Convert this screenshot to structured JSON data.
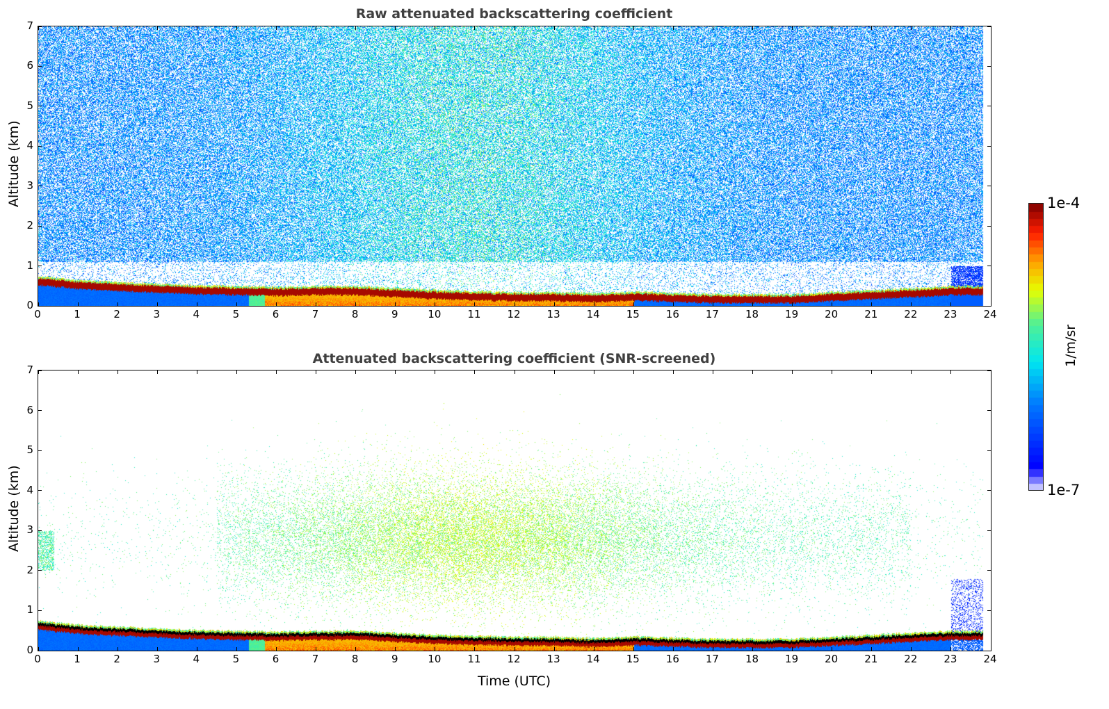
{
  "chart_data": [
    {
      "type": "heatmap",
      "title": "Raw attenuated backscattering coefficient",
      "xlabel": "",
      "ylabel": "Altitude (km)",
      "xlim": [
        0,
        24
      ],
      "ylim": [
        0,
        7
      ],
      "xticks": [
        0,
        1,
        2,
        3,
        4,
        5,
        6,
        7,
        8,
        9,
        10,
        11,
        12,
        13,
        14,
        15,
        16,
        17,
        18,
        19,
        20,
        21,
        22,
        23,
        24
      ],
      "yticks": [
        0,
        1,
        2,
        3,
        4,
        5,
        6,
        7
      ],
      "screened": false
    },
    {
      "type": "heatmap",
      "title": "Attenuated backscattering coefficient (SNR-screened)",
      "xlabel": "Time (UTC)",
      "ylabel": "Altitude (km)",
      "xlim": [
        0,
        24
      ],
      "ylim": [
        0,
        7
      ],
      "xticks": [
        0,
        1,
        2,
        3,
        4,
        5,
        6,
        7,
        8,
        9,
        10,
        11,
        12,
        13,
        14,
        15,
        16,
        17,
        18,
        19,
        20,
        21,
        22,
        23,
        24
      ],
      "yticks": [
        0,
        1,
        2,
        3,
        4,
        5,
        6,
        7
      ],
      "screened": true
    }
  ],
  "boundary_layer_top_km": {
    "hours": [
      0,
      1,
      2,
      3,
      4,
      5,
      6,
      7,
      8,
      9,
      10,
      11,
      12,
      13,
      14,
      15,
      16,
      17,
      18,
      19,
      20,
      21,
      22,
      23,
      23.8
    ],
    "values": [
      0.65,
      0.55,
      0.5,
      0.46,
      0.42,
      0.4,
      0.38,
      0.4,
      0.4,
      0.35,
      0.3,
      0.27,
      0.25,
      0.25,
      0.22,
      0.26,
      0.23,
      0.2,
      0.2,
      0.2,
      0.25,
      0.3,
      0.35,
      0.4,
      0.4
    ]
  },
  "colorbar": {
    "label": "1/m/sr",
    "min_label": "1e-7",
    "max_label": "1e-4",
    "min": 1e-07,
    "max": 0.0001,
    "scale": "log"
  }
}
